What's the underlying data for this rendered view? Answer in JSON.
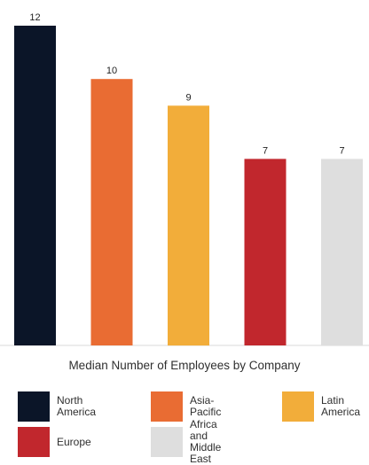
{
  "chart_data": {
    "type": "bar",
    "title": "Median Number of Employees by Company",
    "categories": [
      "North America",
      "Asia-Pacific",
      "Latin America",
      "Europe",
      "Africa and Middle East"
    ],
    "values": [
      12,
      10,
      9,
      7,
      7
    ],
    "colors": [
      "#0b1528",
      "#e96c33",
      "#f2ad3a",
      "#c1272d",
      "#dedede"
    ],
    "ylim": [
      0,
      12
    ],
    "grid": false,
    "legend_position": "bottom"
  },
  "legend": [
    {
      "label": "North America",
      "color": "#0b1528"
    },
    {
      "label": "Asia-Pacific",
      "color": "#e96c33"
    },
    {
      "label": "Latin\nAmerica",
      "color": "#f2ad3a"
    },
    {
      "label": "Europe",
      "color": "#c1272d"
    },
    {
      "label": "Africa and\nMiddle East",
      "color": "#dedede"
    }
  ]
}
